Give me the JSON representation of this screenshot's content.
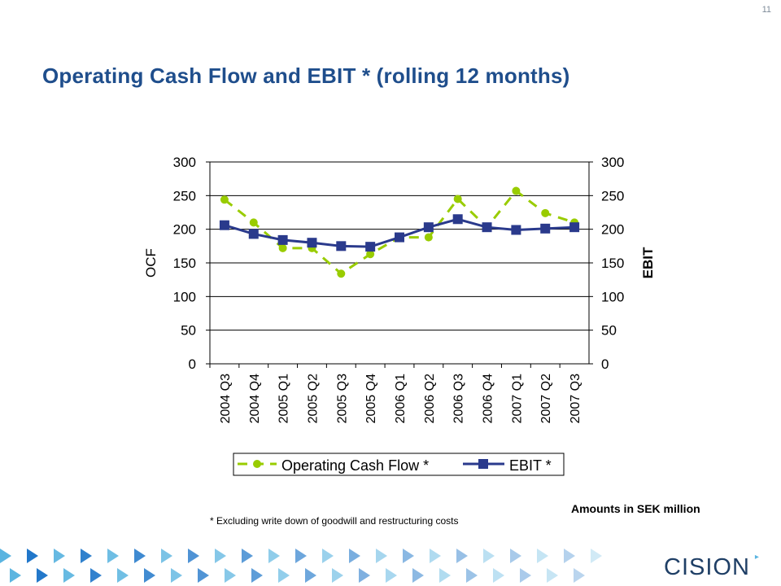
{
  "page": {
    "number": "11"
  },
  "slide": {
    "title": "Operating Cash Flow and EBIT * (rolling 12 months)",
    "units_note": "Amounts in SEK million",
    "footnote": "* Excluding write down of goodwill and restructuring costs"
  },
  "brand": {
    "logo_text": "CISION",
    "logo_icon": "cision-arrow-icon"
  },
  "chart_data": {
    "type": "line",
    "title": "",
    "categories": [
      "2004 Q3",
      "2004 Q4",
      "2005 Q1",
      "2005 Q2",
      "2005 Q3",
      "2005 Q4",
      "2006 Q1",
      "2006 Q2",
      "2006 Q3",
      "2006 Q4",
      "2007 Q1",
      "2007 Q2",
      "2007 Q3"
    ],
    "ylabel_left": "OCF",
    "ylabel_right": "EBIT",
    "ylim": [
      0,
      300
    ],
    "yticks": [
      0,
      50,
      100,
      150,
      200,
      250,
      300
    ],
    "grid": true,
    "legend_position": "bottom",
    "series": [
      {
        "name": "Operating Cash Flow *",
        "axis": "left",
        "color": "#99cc00",
        "dash": true,
        "marker": "circle",
        "values": [
          244,
          210,
          172,
          172,
          134,
          163,
          188,
          188,
          245,
          203,
          257,
          224,
          210
        ]
      },
      {
        "name": "EBIT *",
        "axis": "right",
        "color": "#2a3a8c",
        "dash": false,
        "marker": "square",
        "values": [
          206,
          193,
          184,
          180,
          175,
          174,
          188,
          203,
          215,
          203,
          199,
          201,
          203
        ]
      }
    ]
  }
}
